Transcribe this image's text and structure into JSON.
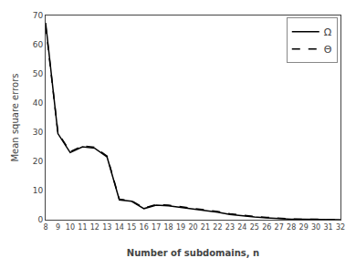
{
  "chart_data": {
    "type": "line",
    "x": [
      8,
      9,
      10,
      11,
      12,
      13,
      14,
      15,
      16,
      17,
      18,
      19,
      20,
      21,
      22,
      23,
      24,
      25,
      26,
      27,
      28,
      29,
      30,
      31,
      32
    ],
    "series": [
      {
        "name": "Ω",
        "color": "#000000",
        "line_style": "solid",
        "values": [
          67.5,
          29.5,
          23.0,
          25.0,
          24.5,
          21.5,
          6.8,
          6.3,
          3.8,
          5.0,
          4.8,
          4.3,
          3.8,
          3.3,
          2.6,
          1.8,
          1.3,
          0.9,
          0.6,
          0.35,
          0.18,
          0.12,
          0.08,
          0.04,
          0.01
        ]
      },
      {
        "name": "Θ",
        "color": "#000000",
        "line_style": "dashed",
        "values": [
          66.5,
          29.8,
          23.3,
          25.3,
          24.8,
          21.8,
          7.0,
          6.5,
          4.0,
          5.2,
          5.0,
          4.5,
          4.0,
          3.5,
          2.8,
          2.0,
          1.5,
          1.1,
          0.8,
          0.5,
          0.25,
          0.18,
          0.12,
          0.07,
          0.03
        ]
      }
    ],
    "xlabel": "Number of subdomains, n",
    "ylabel": "Mean square errors",
    "xlim": [
      8,
      32
    ],
    "ylim": [
      0,
      70
    ],
    "xticks": [
      8,
      9,
      10,
      11,
      12,
      13,
      14,
      15,
      16,
      17,
      18,
      19,
      20,
      21,
      22,
      23,
      24,
      25,
      26,
      27,
      28,
      29,
      30,
      31,
      32
    ],
    "yticks": [
      0,
      10,
      20,
      30,
      40,
      50,
      60,
      70
    ],
    "grid": false,
    "legend": "upper right"
  }
}
